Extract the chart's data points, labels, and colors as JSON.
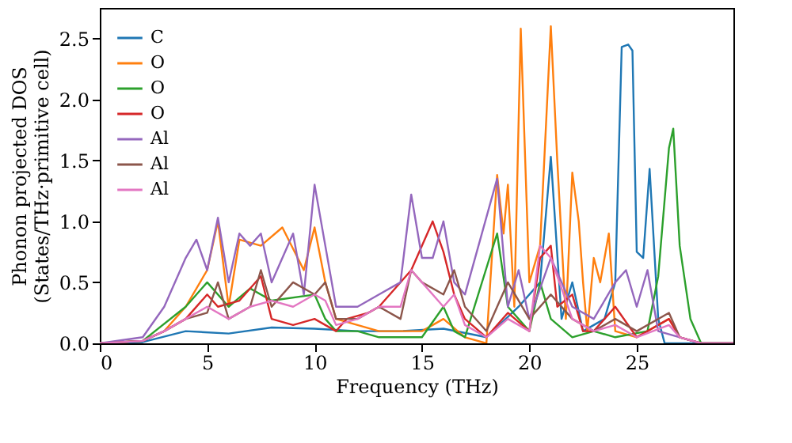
{
  "chart_data": {
    "type": "line",
    "xlabel": "Frequency (THz)",
    "ylabel": "Phonon projected DOS\n(States/THz·primitive cell)",
    "xlim": [
      0,
      29.5
    ],
    "ylim": [
      0,
      2.75
    ],
    "xticks": [
      0,
      5,
      10,
      15,
      20,
      25
    ],
    "yticks": [
      {
        "value": 0,
        "label": "0.0"
      },
      {
        "value": 0.5,
        "label": "0.5"
      },
      {
        "value": 1,
        "label": "1.0"
      },
      {
        "value": 1.5,
        "label": "1.5"
      },
      {
        "value": 2,
        "label": "2.0"
      },
      {
        "value": 2.5,
        "label": "2.5"
      }
    ],
    "grid": false,
    "legend": "top left",
    "line_style": "solid",
    "marker": "none",
    "series": [
      {
        "name": "C",
        "color": "#1f77b4",
        "x": [
          0,
          2,
          4,
          6,
          8,
          10,
          12,
          14,
          16,
          18,
          19.5,
          20.5,
          21,
          21.5,
          22,
          22.5,
          23.5,
          24,
          24.3,
          24.6,
          24.8,
          25,
          25.3,
          25.6,
          26,
          26.3,
          29.5
        ],
        "values": [
          0,
          0.01,
          0.1,
          0.08,
          0.13,
          0.12,
          0.1,
          0.1,
          0.12,
          0.05,
          0.3,
          0.5,
          1.53,
          0.2,
          0.5,
          0.1,
          0.2,
          0.5,
          2.43,
          2.45,
          2.4,
          0.75,
          0.7,
          1.43,
          0.2,
          0,
          0
        ]
      },
      {
        "name": "O",
        "color": "#ff7f0e",
        "x": [
          0,
          2,
          3,
          4,
          5,
          5.5,
          6,
          6.5,
          7.5,
          8.5,
          9.5,
          10,
          10.5,
          11,
          12,
          13,
          14,
          15,
          16,
          17,
          18,
          18.5,
          18.8,
          19,
          19.3,
          19.6,
          20,
          20.5,
          21,
          21.3,
          21.7,
          22,
          22.3,
          22.5,
          22.7,
          23,
          23.3,
          23.7,
          24,
          25,
          26.5,
          27,
          28,
          29.5
        ],
        "values": [
          0,
          0.02,
          0.1,
          0.3,
          0.6,
          1.0,
          0.3,
          0.85,
          0.8,
          0.95,
          0.6,
          0.95,
          0.5,
          0.2,
          0.15,
          0.1,
          0.1,
          0.1,
          0.2,
          0.05,
          0,
          1.38,
          0.9,
          1.3,
          0.3,
          2.58,
          0.5,
          0.8,
          2.6,
          1.5,
          0.2,
          1.4,
          1.0,
          0.5,
          0.1,
          0.7,
          0.5,
          0.9,
          0.1,
          0.05,
          0.2,
          0.05,
          0,
          0
        ]
      },
      {
        "name": "O",
        "color": "#2ca02c",
        "x": [
          0,
          2,
          4,
          5,
          6,
          7,
          8,
          10,
          10.5,
          11,
          12,
          13,
          14,
          15,
          16,
          16.5,
          17,
          18.5,
          19,
          20,
          20.5,
          21,
          22,
          23,
          24,
          25.5,
          26,
          26.5,
          26.7,
          27,
          27.5,
          28,
          29.5
        ],
        "values": [
          0,
          0.02,
          0.3,
          0.5,
          0.3,
          0.45,
          0.35,
          0.4,
          0.2,
          0.1,
          0.1,
          0.05,
          0.05,
          0.05,
          0.3,
          0.1,
          0.05,
          0.9,
          0.3,
          0.1,
          0.5,
          0.2,
          0.05,
          0.1,
          0.05,
          0.1,
          0.55,
          1.6,
          1.76,
          0.8,
          0.2,
          0,
          0
        ]
      },
      {
        "name": "O",
        "color": "#d62728",
        "x": [
          0,
          2,
          3,
          4,
          5,
          5.5,
          6.5,
          7.5,
          8,
          9,
          10,
          11,
          11.5,
          12.5,
          13,
          14.5,
          15.5,
          16,
          16.5,
          17,
          18,
          19,
          20,
          20.5,
          21,
          21.3,
          22,
          22.5,
          23,
          24,
          25,
          26.5,
          27,
          28,
          29.5
        ],
        "values": [
          0,
          0.02,
          0.1,
          0.2,
          0.4,
          0.3,
          0.35,
          0.55,
          0.2,
          0.15,
          0.2,
          0.1,
          0.2,
          0.25,
          0.3,
          0.6,
          1.0,
          0.75,
          0.4,
          0.2,
          0.05,
          0.25,
          0.1,
          0.7,
          0.8,
          0.3,
          0.4,
          0.1,
          0.1,
          0.3,
          0.05,
          0.2,
          0.05,
          0,
          0
        ]
      },
      {
        "name": "Al",
        "color": "#9467bd",
        "x": [
          0,
          2,
          3,
          4,
          4.5,
          5,
          5.5,
          6,
          6.5,
          7,
          7.5,
          8,
          9,
          9.5,
          10,
          10.5,
          11,
          12,
          13,
          14,
          14.5,
          15,
          15.5,
          16,
          16.5,
          17,
          18.5,
          19,
          19.5,
          20,
          21,
          22,
          23,
          24,
          24.5,
          25,
          25.5,
          26,
          27,
          28,
          29.5
        ],
        "values": [
          0,
          0.05,
          0.3,
          0.7,
          0.85,
          0.6,
          1.03,
          0.5,
          0.9,
          0.8,
          0.9,
          0.5,
          0.9,
          0.4,
          1.3,
          0.8,
          0.3,
          0.3,
          0.4,
          0.5,
          1.22,
          0.7,
          0.7,
          1.0,
          0.5,
          0.4,
          1.35,
          0.3,
          0.6,
          0.2,
          0.7,
          0.3,
          0.2,
          0.5,
          0.6,
          0.3,
          0.6,
          0.1,
          0.05,
          0,
          0
        ]
      },
      {
        "name": "Al",
        "color": "#8c564b",
        "x": [
          0,
          2,
          3,
          4,
          5,
          5.5,
          6,
          7,
          7.5,
          8,
          9,
          10,
          10.5,
          11,
          12,
          13,
          14,
          14.5,
          15,
          16,
          16.5,
          17,
          18,
          19,
          20,
          21,
          22,
          23,
          24,
          25,
          26.5,
          27,
          28,
          29.5
        ],
        "values": [
          0,
          0.02,
          0.1,
          0.2,
          0.25,
          0.5,
          0.2,
          0.3,
          0.6,
          0.3,
          0.5,
          0.4,
          0.5,
          0.2,
          0.2,
          0.3,
          0.2,
          0.6,
          0.5,
          0.4,
          0.6,
          0.3,
          0.1,
          0.5,
          0.2,
          0.4,
          0.2,
          0.1,
          0.2,
          0.1,
          0.25,
          0.05,
          0,
          0
        ]
      },
      {
        "name": "Al",
        "color": "#e377c2",
        "x": [
          0,
          2,
          3,
          4,
          5,
          6,
          7,
          8,
          9,
          10,
          10.5,
          11,
          12,
          13,
          14,
          14.5,
          15,
          16,
          16.5,
          17,
          18,
          19,
          20,
          20.5,
          21,
          22,
          23,
          24,
          25,
          26.5,
          27,
          28,
          29.5
        ],
        "values": [
          0,
          0.02,
          0.1,
          0.2,
          0.3,
          0.2,
          0.3,
          0.35,
          0.3,
          0.4,
          0.35,
          0.15,
          0.2,
          0.3,
          0.3,
          0.6,
          0.5,
          0.3,
          0.4,
          0.15,
          0.05,
          0.2,
          0.1,
          0.8,
          0.7,
          0.2,
          0.1,
          0.15,
          0.05,
          0.15,
          0.05,
          0,
          0
        ]
      }
    ]
  }
}
